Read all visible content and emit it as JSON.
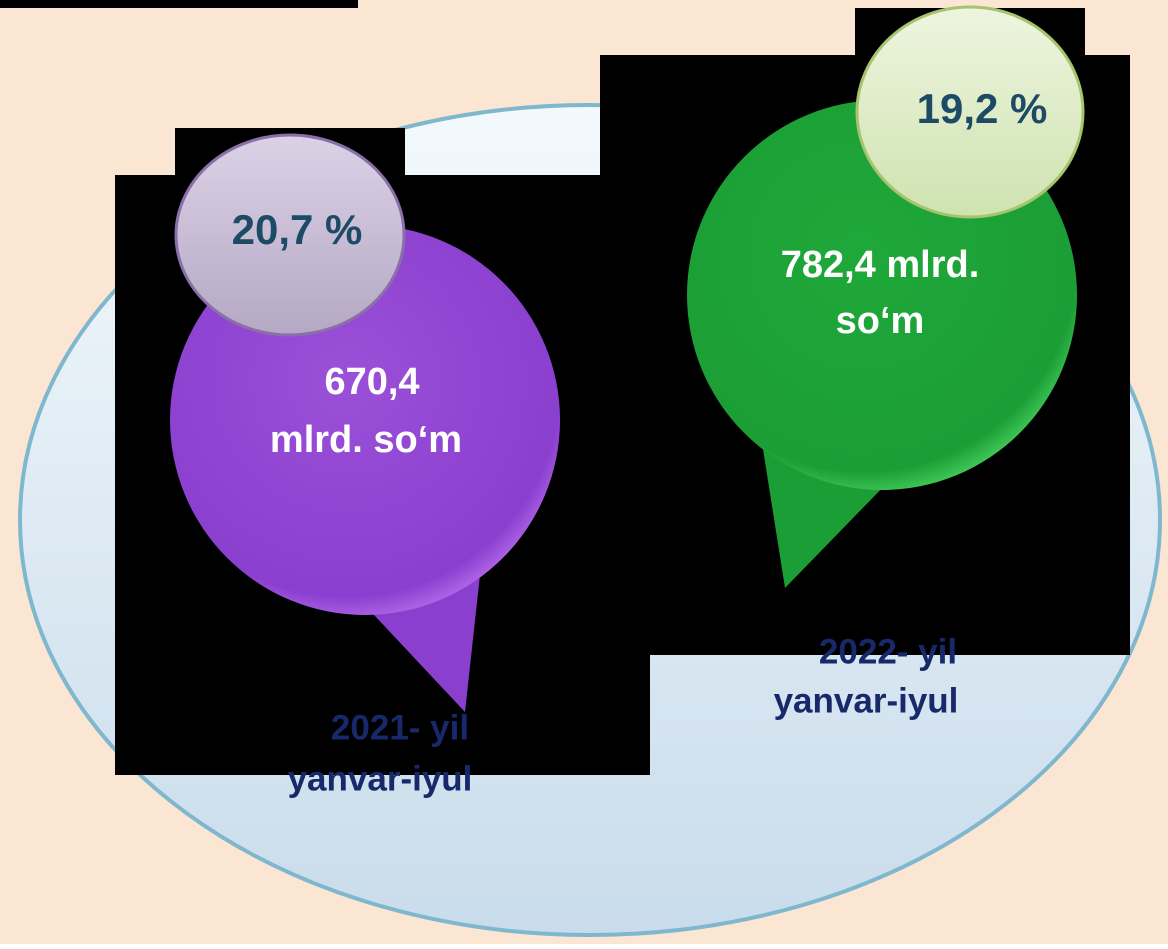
{
  "items": [
    {
      "percent": "20,7 %",
      "value_lines": [
        "670,4",
        "mlrd. so‘m"
      ],
      "period_lines": [
        "2021- yil",
        "yanvar-iyul"
      ]
    },
    {
      "percent": "19,2 %",
      "value_lines": [
        "782,4 mlrd.",
        "so‘m"
      ],
      "period_lines": [
        "2022- yil",
        "yanvar-iyul"
      ]
    }
  ]
}
